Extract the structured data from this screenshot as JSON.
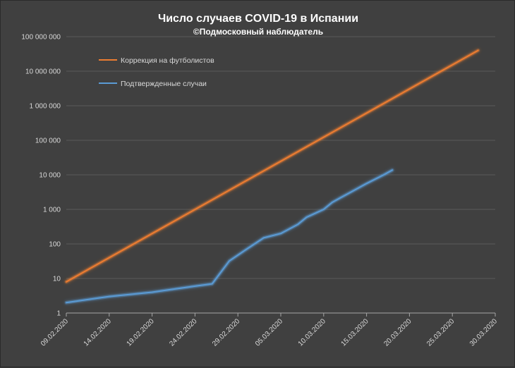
{
  "chart_data": {
    "type": "line",
    "title": "Число случаев COVID-19 в Испании",
    "subtitle": "©Подмосковный наблюдатель",
    "y_scale": "log",
    "ylim": [
      1,
      100000000
    ],
    "xlim": [
      "09.02.2020",
      "30.03.2020"
    ],
    "y_ticks": [
      "1",
      "10",
      "100",
      "1 000",
      "10 000",
      "100 000",
      "1 000 000",
      "10 000 000",
      "100 000 000"
    ],
    "x_ticks": [
      "09.02.2020",
      "14.02.2020",
      "19.02.2020",
      "24.02.2020",
      "29.02.2020",
      "05.03.2020",
      "10.03.2020",
      "15.03.2020",
      "20.03.2020",
      "25.03.2020",
      "30.03.2020"
    ],
    "grid": "y-major",
    "legend_position": "top-left",
    "series": [
      {
        "name": "Коррекция на футболистов",
        "color": "#ed7d31",
        "points": [
          {
            "x": "09.02.2020",
            "y": 8
          },
          {
            "x": "28.03.2020",
            "y": 40000000
          }
        ]
      },
      {
        "name": "Подтвержденные случаи",
        "color": "#5b9bd5",
        "points": [
          {
            "x": "09.02.2020",
            "y": 2
          },
          {
            "x": "14.02.2020",
            "y": 3
          },
          {
            "x": "19.02.2020",
            "y": 4
          },
          {
            "x": "24.02.2020",
            "y": 6
          },
          {
            "x": "26.02.2020",
            "y": 7
          },
          {
            "x": "28.02.2020",
            "y": 32
          },
          {
            "x": "01.03.2020",
            "y": 70
          },
          {
            "x": "03.03.2020",
            "y": 150
          },
          {
            "x": "05.03.2020",
            "y": 200
          },
          {
            "x": "07.03.2020",
            "y": 370
          },
          {
            "x": "08.03.2020",
            "y": 590
          },
          {
            "x": "10.03.2020",
            "y": 1000
          },
          {
            "x": "11.03.2020",
            "y": 1600
          },
          {
            "x": "12.03.2020",
            "y": 2200
          },
          {
            "x": "13.03.2020",
            "y": 3000
          },
          {
            "x": "15.03.2020",
            "y": 5600
          },
          {
            "x": "17.03.2020",
            "y": 10000
          },
          {
            "x": "18.03.2020",
            "y": 13700
          }
        ]
      }
    ]
  }
}
